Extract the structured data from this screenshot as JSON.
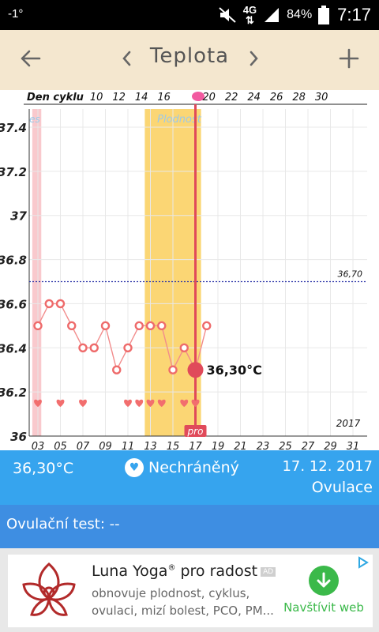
{
  "status_bar": {
    "signal_left": "-1°",
    "network": "4G",
    "battery": "84%",
    "time": "7:17"
  },
  "header": {
    "title": "Teplota",
    "back_icon": "arrow-left-icon",
    "prev_icon": "chevron-left-icon",
    "next_icon": "chevron-right-icon",
    "add_icon": "plus-icon"
  },
  "chart_data": {
    "type": "line",
    "title": "",
    "top_axis_label": "Den cyklu",
    "top_ticks": [
      "10",
      "12",
      "14",
      "16",
      "",
      "20",
      "22",
      "24",
      "26",
      "28",
      "30"
    ],
    "bottom_ticks": [
      "03",
      "05",
      "07",
      "09",
      "11",
      "13",
      "15",
      "17",
      "19",
      "21",
      "23",
      "25",
      "27",
      "29",
      "31"
    ],
    "y_ticks": [
      "37.4",
      "37.2",
      "37",
      "36.8",
      "36.6",
      "36.4",
      "36.2",
      "36"
    ],
    "ylim": [
      36.0,
      37.4
    ],
    "x_first_day": 3,
    "x_last_day": 31,
    "series": [
      {
        "x": [
          3,
          4,
          5,
          6,
          7,
          8,
          9,
          10,
          11,
          12,
          13,
          14,
          15,
          16,
          17,
          18
        ],
        "values": [
          36.5,
          36.6,
          36.6,
          36.5,
          36.4,
          36.4,
          36.5,
          36.3,
          36.4,
          36.5,
          36.5,
          36.5,
          36.3,
          36.4,
          36.3,
          36.5
        ]
      }
    ],
    "intercourse_days": [
      3,
      5,
      7,
      11,
      12,
      13,
      14,
      16,
      17
    ],
    "coverline": {
      "value": 36.7,
      "label": "36,70"
    },
    "fertile_window": {
      "from_day": 12.5,
      "to_day": 17.5,
      "label": "Plodnost"
    },
    "period_band": {
      "from_day": 2.5,
      "to_day": 3.3,
      "label": "es"
    },
    "selected_day": {
      "x": 17,
      "value": 36.3,
      "label": "36,30°C",
      "badge": "pro"
    },
    "year_label": "2017",
    "colors": {
      "line": "#f28c8c",
      "point": "#ee6b6b",
      "heart": "#f26e6e",
      "fertile": "#fbd674",
      "period": "#f9c9cd",
      "cursor": "#e04a5a",
      "coverline": "#2b34a8",
      "grid": "#e8e8e8"
    }
  },
  "info": {
    "temperature": "36,30°C",
    "protection": "Nechráněný",
    "protection_icon": "heart-icon",
    "date": "17. 12. 2017",
    "phase": "Ovulace",
    "ovulation_test": "Ovulační test: --"
  },
  "ad": {
    "title": "Luna Yoga",
    "title_mark": "®",
    "title_suffix": " pro radost",
    "tag": "AD",
    "description": "obnovuje plodnost, cyklus, ovulaci, mizí bolest, PCO, PM...",
    "cta": "Navštívit web",
    "cta_icon": "arrow-down-icon",
    "choice_icon": "adchoices-icon"
  }
}
